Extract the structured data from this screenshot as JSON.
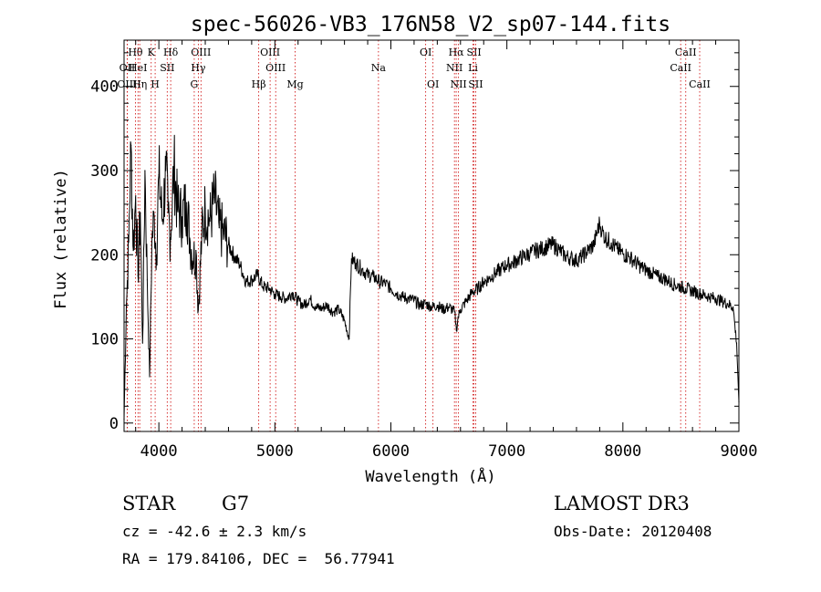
{
  "chart_data": {
    "type": "line",
    "title": "spec-56026-VB3_176N58_V2_sp07-144.fits",
    "xlabel": "Wavelength (Å)",
    "ylabel": "Flux (relative)",
    "xlim": [
      3700,
      9000
    ],
    "ylim": [
      -10,
      455
    ],
    "x_ticks": [
      4000,
      5000,
      6000,
      7000,
      8000,
      9000
    ],
    "x_tick_labels": [
      "4000",
      "5000",
      "6000",
      "7000",
      "8000",
      "9000"
    ],
    "y_ticks": [
      0,
      100,
      200,
      300,
      400
    ],
    "y_tick_labels": [
      "0",
      "100",
      "200",
      "300",
      "400"
    ],
    "line_color": "#000000",
    "marker_color": "#cc0000",
    "series": [
      {
        "name": "flux",
        "x": [
          3700,
          3720,
          3740,
          3760,
          3780,
          3800,
          3820,
          3840,
          3860,
          3880,
          3900,
          3920,
          3940,
          3960,
          3980,
          4000,
          4030,
          4060,
          4080,
          4100,
          4130,
          4160,
          4200,
          4240,
          4270,
          4300,
          4320,
          4340,
          4370,
          4400,
          4440,
          4480,
          4520,
          4560,
          4600,
          4650,
          4700,
          4750,
          4800,
          4850,
          4900,
          4950,
          5000,
          5050,
          5100,
          5150,
          5200,
          5250,
          5300,
          5350,
          5400,
          5450,
          5500,
          5550,
          5600,
          5640,
          5660,
          5700,
          5750,
          5800,
          5850,
          5900,
          5950,
          6000,
          6050,
          6100,
          6150,
          6200,
          6250,
          6300,
          6350,
          6400,
          6450,
          6500,
          6550,
          6565,
          6580,
          6600,
          6650,
          6700,
          6750,
          6800,
          6850,
          6900,
          6950,
          7000,
          7050,
          7100,
          7150,
          7200,
          7250,
          7300,
          7350,
          7400,
          7450,
          7500,
          7550,
          7600,
          7650,
          7700,
          7750,
          7800,
          7820,
          7850,
          7900,
          7950,
          8000,
          8050,
          8100,
          8150,
          8200,
          8250,
          8300,
          8350,
          8400,
          8450,
          8500,
          8540,
          8580,
          8620,
          8660,
          8700,
          8750,
          8800,
          8850,
          8900,
          8950,
          8980,
          9000
        ],
        "values": [
          5,
          140,
          215,
          330,
          205,
          270,
          175,
          250,
          95,
          300,
          170,
          55,
          215,
          245,
          200,
          295,
          240,
          300,
          250,
          220,
          305,
          255,
          245,
          262,
          215,
          195,
          205,
          135,
          222,
          255,
          240,
          268,
          232,
          225,
          212,
          198,
          188,
          168,
          170,
          176,
          162,
          160,
          153,
          150,
          148,
          155,
          145,
          140,
          148,
          138,
          136,
          140,
          132,
          135,
          122,
          100,
          195,
          190,
          183,
          176,
          174,
          168,
          166,
          160,
          154,
          150,
          148,
          146,
          140,
          142,
          138,
          140,
          135,
          138,
          132,
          110,
          126,
          135,
          145,
          155,
          160,
          168,
          172,
          178,
          183,
          188,
          190,
          195,
          198,
          202,
          205,
          207,
          210,
          212,
          206,
          199,
          196,
          193,
          198,
          205,
          212,
          238,
          228,
          220,
          214,
          207,
          201,
          198,
          192,
          186,
          182,
          178,
          174,
          172,
          168,
          164,
          162,
          160,
          158,
          156,
          154,
          152,
          150,
          148,
          145,
          142,
          138,
          95,
          25
        ]
      }
    ],
    "line_markers": [
      {
        "label": "Hθ",
        "wavelength": 3798,
        "row": 1
      },
      {
        "label": "OII",
        "wavelength": 3727,
        "row": 2
      },
      {
        "label": "OIII",
        "wavelength": 3727,
        "row": 3
      },
      {
        "label": "K",
        "wavelength": 3934,
        "row": 1
      },
      {
        "label": "HeI",
        "wavelength": 3820,
        "row": 2
      },
      {
        "label": "Hη",
        "wavelength": 3835,
        "row": 3
      },
      {
        "label": "SII",
        "wavelength": 4072,
        "row": 2
      },
      {
        "label": "H",
        "wavelength": 3968,
        "row": 3
      },
      {
        "label": "Hδ",
        "wavelength": 4102,
        "row": 1
      },
      {
        "label": "OIII",
        "wavelength": 4363,
        "row": 1
      },
      {
        "label": "Hγ",
        "wavelength": 4340,
        "row": 2
      },
      {
        "label": "G",
        "wavelength": 4305,
        "row": 3
      },
      {
        "label": "OIII",
        "wavelength": 4959,
        "row": 1
      },
      {
        "label": "OIII",
        "wavelength": 5007,
        "row": 2
      },
      {
        "label": "Hβ",
        "wavelength": 4861,
        "row": 3
      },
      {
        "label": "Mg",
        "wavelength": 5175,
        "row": 3
      },
      {
        "label": "Na",
        "wavelength": 5893,
        "row": 2
      },
      {
        "label": "OI",
        "wavelength": 6300,
        "row": 1
      },
      {
        "label": "OI",
        "wavelength": 6363,
        "row": 3
      },
      {
        "label": "Hα",
        "wavelength": 6563,
        "row": 1
      },
      {
        "label": "NII",
        "wavelength": 6548,
        "row": 2
      },
      {
        "label": "NII",
        "wavelength": 6583,
        "row": 3
      },
      {
        "label": "SII",
        "wavelength": 6717,
        "row": 1
      },
      {
        "label": "Li",
        "wavelength": 6708,
        "row": 2
      },
      {
        "label": "SII",
        "wavelength": 6731,
        "row": 3
      },
      {
        "label": "CaII",
        "wavelength": 8542,
        "row": 1
      },
      {
        "label": "CaII",
        "wavelength": 8498,
        "row": 2
      },
      {
        "label": "CaII",
        "wavelength": 8662,
        "row": 3
      }
    ]
  },
  "info": {
    "class_label": "STAR",
    "subclass": "G7",
    "redshift": "cz = -42.6 ± 2.3 km/s",
    "coords": "RA = 179.84106, DEC =  56.77941",
    "survey": "LAMOST DR3",
    "obs_date": "Obs-Date: 20120408"
  }
}
